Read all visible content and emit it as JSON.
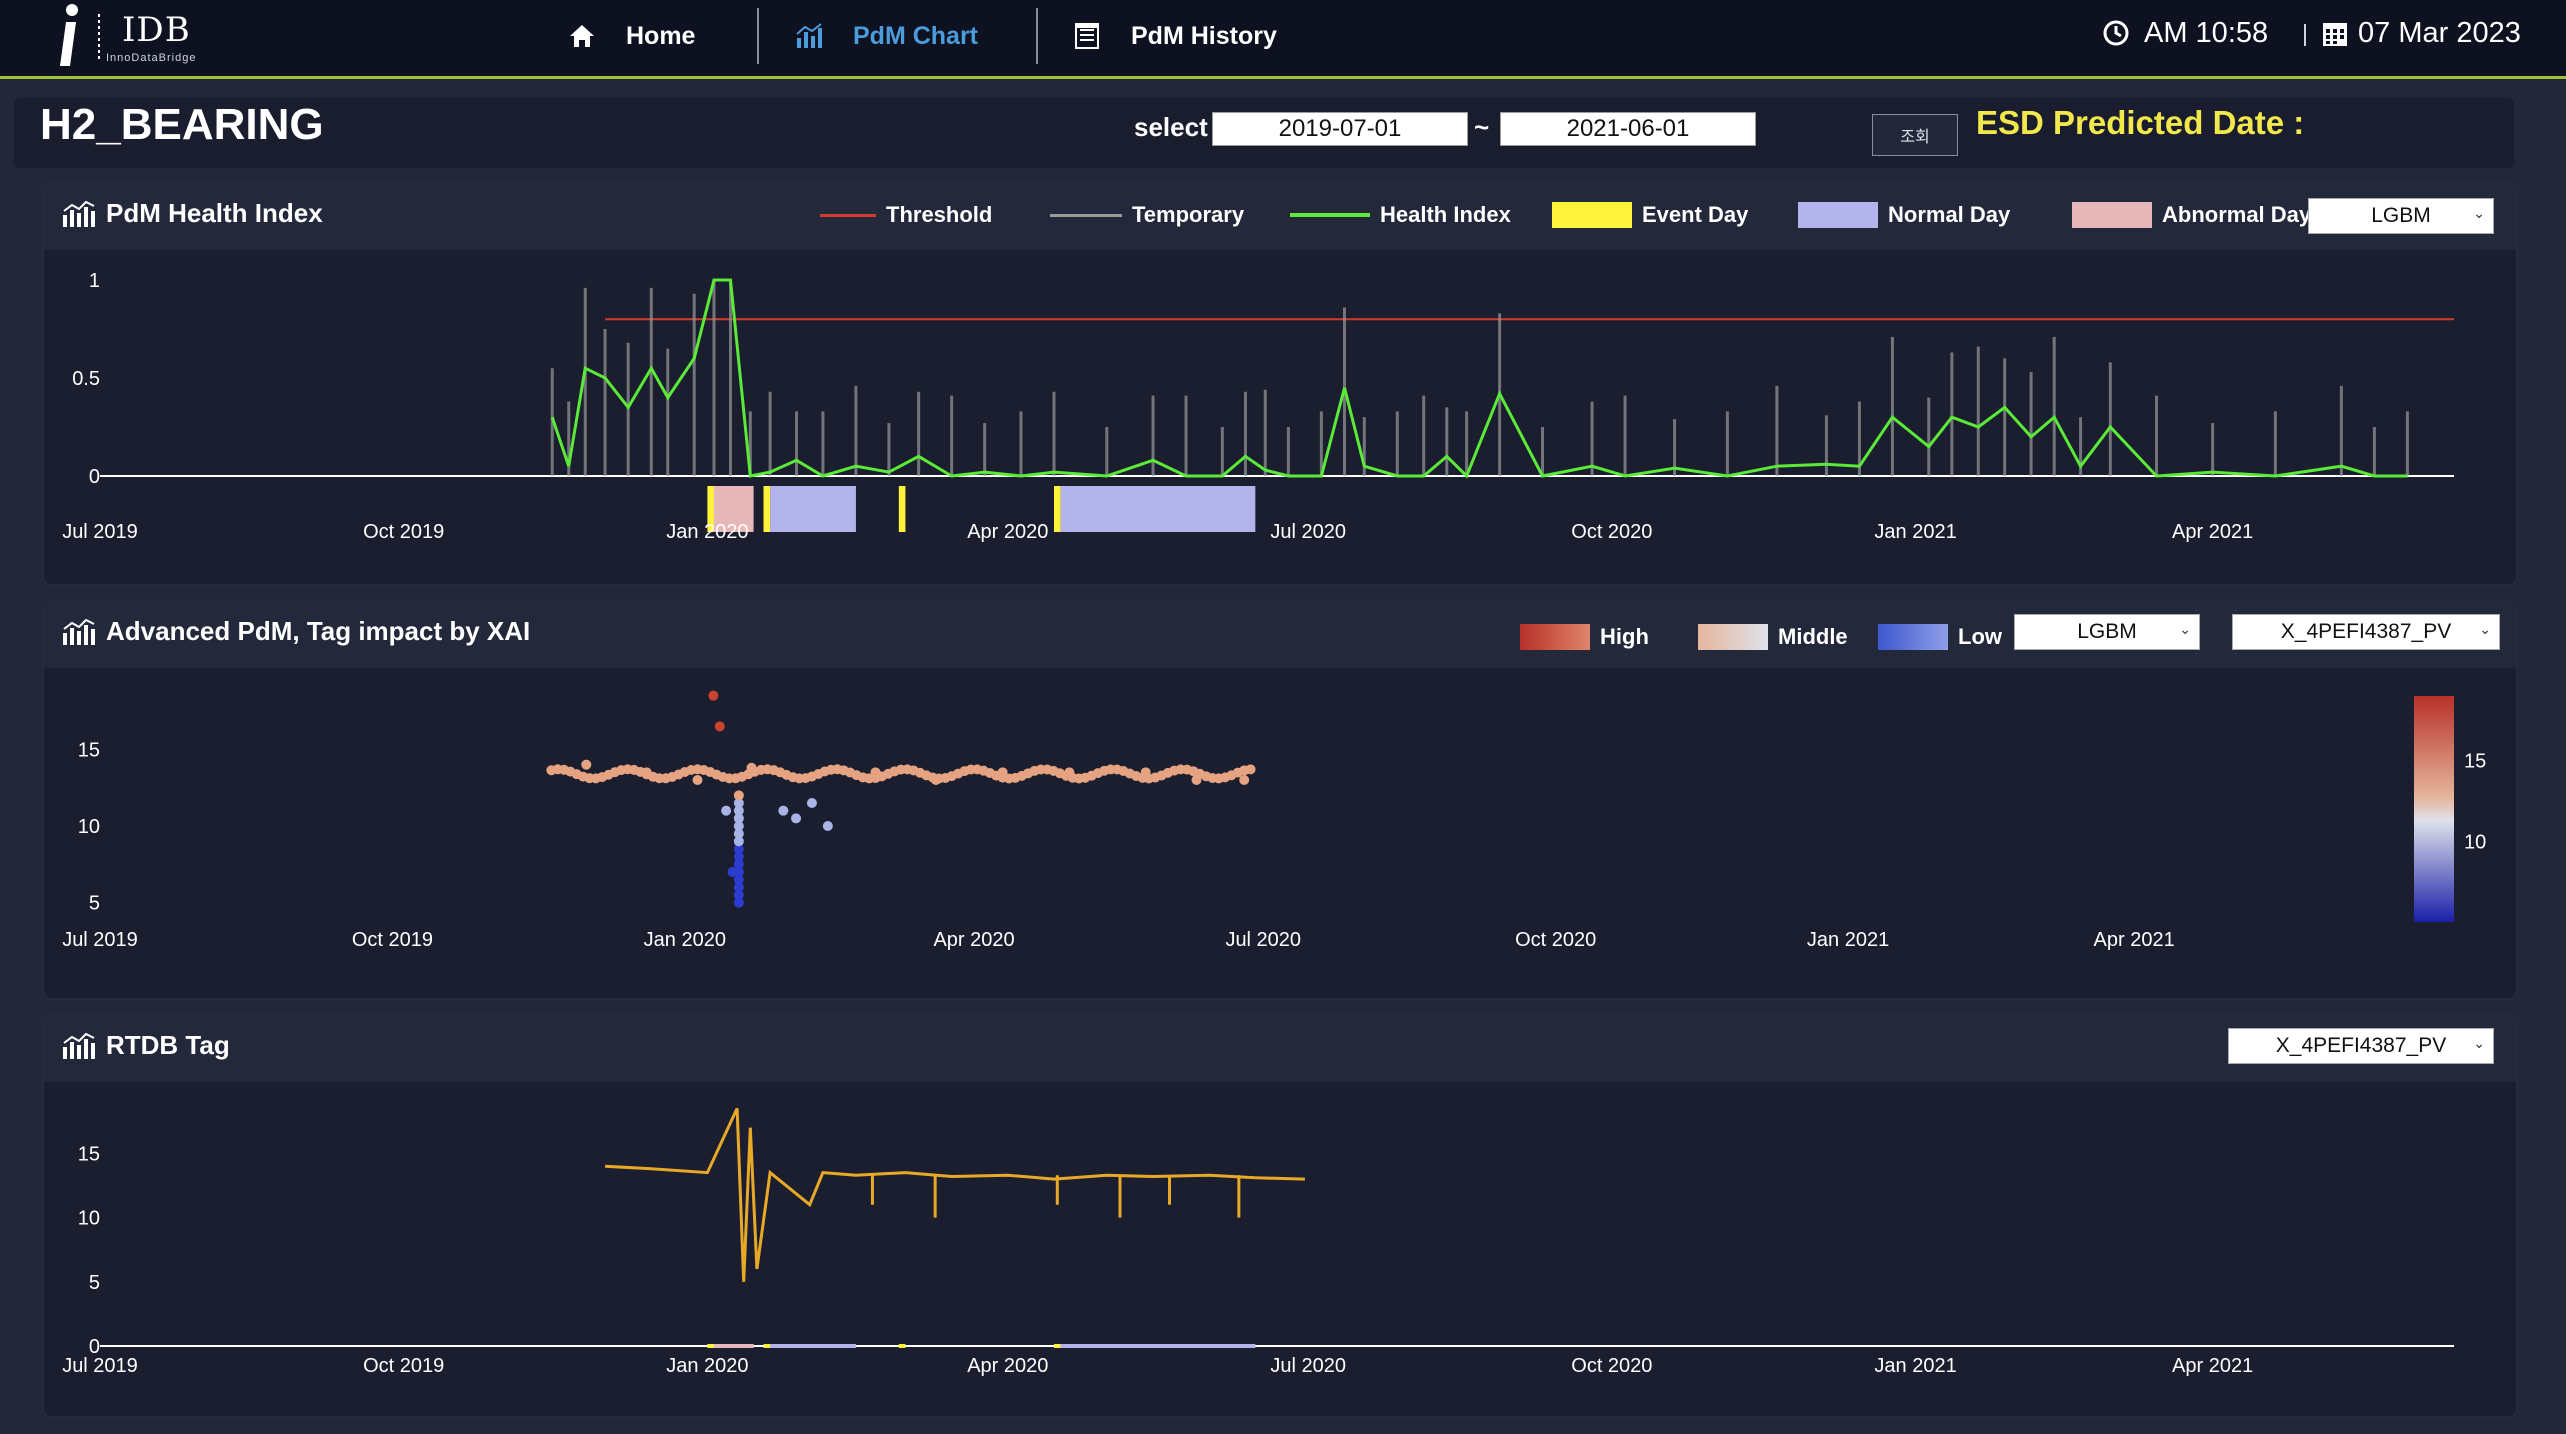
{
  "app": {
    "logo_text": "IDB",
    "logo_subtext": "InnoDataBridge"
  },
  "nav": {
    "home": "Home",
    "pdm_chart": "PdM Chart",
    "pdm_history": "PdM History"
  },
  "clock": {
    "time": "AM 10:58",
    "date": "07 Mar 2023"
  },
  "header": {
    "title": "H2_BEARING",
    "select_label": "select",
    "date_from": "2019-07-01",
    "date_sep": "~",
    "date_to": "2021-06-01",
    "query_button": "조회",
    "esd_label": "ESD Predicted Date :"
  },
  "panel1": {
    "title": "PdM Health Index",
    "model_select": "LGBM",
    "legend": {
      "threshold": "Threshold",
      "temporary": "Temporary",
      "health_index": "Health Index",
      "event_day": "Event Day",
      "normal_day": "Normal Day",
      "abnormal_day": "Abnormal Day"
    }
  },
  "panel2": {
    "title": "Advanced PdM, Tag impact by XAI",
    "model_select": "LGBM",
    "tag_select": "X_4PEFI4387_PV",
    "legend": {
      "high": "High",
      "middle": "Middle",
      "low": "Low"
    }
  },
  "panel3": {
    "title": "RTDB Tag",
    "tag_select": "X_4PEFI4387_PV"
  },
  "colors": {
    "threshold": "#d23b2b",
    "temporary": "#9a9a9a",
    "health_index": "#5bea37",
    "event_day": "#fff23a",
    "normal_day": "#b3b4ec",
    "abnormal_day": "#e7b8ba",
    "rtdb_line": "#e8a927",
    "accent_nav": "#4b9cdb",
    "esd_text": "#f2e84b"
  },
  "chart_data": [
    {
      "type": "line",
      "title": "PdM Health Index",
      "x_tick_labels": [
        "Jul 2019",
        "Oct 2019",
        "Jan 2020",
        "Apr 2020",
        "Jul 2020",
        "Oct 2020",
        "Jan 2021",
        "Apr 2021"
      ],
      "y_tick_labels": [
        "0",
        "0.5",
        "1"
      ],
      "ylim": [
        0,
        1
      ],
      "threshold": 0.8,
      "series": [
        {
          "name": "Health Index",
          "x": [
            "2019-11-15",
            "2019-11-20",
            "2019-11-25",
            "2019-12-01",
            "2019-12-08",
            "2019-12-15",
            "2019-12-20",
            "2019-12-28",
            "2020-01-03",
            "2020-01-08",
            "2020-01-14",
            "2020-01-20",
            "2020-01-28",
            "2020-02-05",
            "2020-02-15",
            "2020-02-25",
            "2020-03-05",
            "2020-03-15",
            "2020-03-25",
            "2020-04-05",
            "2020-04-15",
            "2020-05-01",
            "2020-05-15",
            "2020-05-25",
            "2020-06-05",
            "2020-06-12",
            "2020-06-18",
            "2020-06-25",
            "2020-07-05",
            "2020-07-12",
            "2020-07-18",
            "2020-07-28",
            "2020-08-05",
            "2020-08-12",
            "2020-08-18",
            "2020-08-28",
            "2020-09-10",
            "2020-09-25",
            "2020-10-05",
            "2020-10-20",
            "2020-11-05",
            "2020-11-20",
            "2020-12-05",
            "2020-12-15",
            "2020-12-25",
            "2021-01-05",
            "2021-01-12",
            "2021-01-20",
            "2021-01-28",
            "2021-02-05",
            "2021-02-12",
            "2021-02-20",
            "2021-03-01",
            "2021-03-15",
            "2021-04-01",
            "2021-04-20",
            "2021-05-10",
            "2021-05-20",
            "2021-05-30"
          ],
          "values": [
            0.3,
            0.05,
            0.55,
            0.5,
            0.35,
            0.55,
            0.4,
            0.6,
            1.0,
            1.0,
            0.0,
            0.02,
            0.08,
            0.0,
            0.05,
            0.02,
            0.1,
            0.0,
            0.02,
            0.0,
            0.02,
            0.0,
            0.08,
            0.0,
            0.0,
            0.1,
            0.03,
            0.0,
            0.0,
            0.45,
            0.05,
            0.0,
            0.0,
            0.1,
            0.0,
            0.42,
            0.0,
            0.05,
            0.0,
            0.04,
            0.0,
            0.05,
            0.06,
            0.05,
            0.3,
            0.15,
            0.3,
            0.25,
            0.35,
            0.2,
            0.3,
            0.05,
            0.25,
            0.0,
            0.02,
            0.0,
            0.05,
            0.0,
            0.0
          ]
        }
      ],
      "bands": [
        {
          "type": "Event Day",
          "start": "2020-01-01",
          "end": "2020-01-03"
        },
        {
          "type": "Abnormal Day",
          "start": "2020-01-03",
          "end": "2020-01-15"
        },
        {
          "type": "Event Day",
          "start": "2020-01-18",
          "end": "2020-01-20"
        },
        {
          "type": "Normal Day",
          "start": "2020-01-20",
          "end": "2020-02-15"
        },
        {
          "type": "Event Day",
          "start": "2020-02-28",
          "end": "2020-03-01"
        },
        {
          "type": "Event Day",
          "start": "2020-04-15",
          "end": "2020-04-17"
        },
        {
          "type": "Normal Day",
          "start": "2020-04-17",
          "end": "2020-06-15"
        }
      ]
    },
    {
      "type": "scatter",
      "title": "Advanced PdM, Tag impact by XAI",
      "x_tick_labels": [
        "Jul 2019",
        "Oct 2019",
        "Jan 2020",
        "Apr 2020",
        "Jul 2020",
        "Oct 2020",
        "Jan 2021",
        "Apr 2021"
      ],
      "y_tick_labels": [
        "5",
        "10",
        "15"
      ],
      "colorbar_tick_labels": [
        "10",
        "15"
      ],
      "ylim": [
        4,
        19
      ],
      "series": [
        {
          "name": "X_4PEFI4387_PV",
          "x": [
            "2019-12-01",
            "2019-12-20",
            "2020-01-05",
            "2020-01-10",
            "2020-01-12",
            "2020-01-14",
            "2020-01-16",
            "2020-01-18",
            "2020-01-22",
            "2020-02-01",
            "2020-02-05",
            "2020-02-10",
            "2020-02-15",
            "2020-03-01",
            "2020-03-20",
            "2020-04-10",
            "2020-05-01",
            "2020-05-25",
            "2020-06-10",
            "2020-06-25"
          ],
          "values": [
            14.0,
            13.5,
            13.0,
            18.5,
            16.5,
            11.0,
            7.0,
            5.0,
            13.8,
            11.0,
            10.5,
            11.5,
            10.0,
            13.5,
            13.0,
            13.5,
            13.5,
            13.5,
            13.0,
            13.0
          ]
        }
      ]
    },
    {
      "type": "line",
      "title": "RTDB Tag",
      "x_tick_labels": [
        "Jul 2019",
        "Oct 2019",
        "Jan 2020",
        "Apr 2020",
        "Jul 2020",
        "Oct 2020",
        "Jan 2021",
        "Apr 2021"
      ],
      "y_tick_labels": [
        "0",
        "5",
        "10",
        "15"
      ],
      "ylim": [
        0,
        19
      ],
      "series": [
        {
          "name": "X_4PEFI4387_PV",
          "x": [
            "2019-12-01",
            "2019-12-15",
            "2020-01-01",
            "2020-01-10",
            "2020-01-12",
            "2020-01-14",
            "2020-01-16",
            "2020-01-20",
            "2020-02-01",
            "2020-02-05",
            "2020-02-15",
            "2020-03-01",
            "2020-03-15",
            "2020-04-01",
            "2020-04-15",
            "2020-05-01",
            "2020-05-15",
            "2020-06-01",
            "2020-06-15",
            "2020-06-30"
          ],
          "values": [
            14.0,
            13.8,
            13.5,
            18.5,
            5.0,
            17.0,
            6.0,
            13.5,
            11.0,
            13.5,
            13.3,
            13.5,
            13.2,
            13.3,
            13.0,
            13.3,
            13.2,
            13.3,
            13.1,
            13.0
          ]
        }
      ]
    }
  ]
}
